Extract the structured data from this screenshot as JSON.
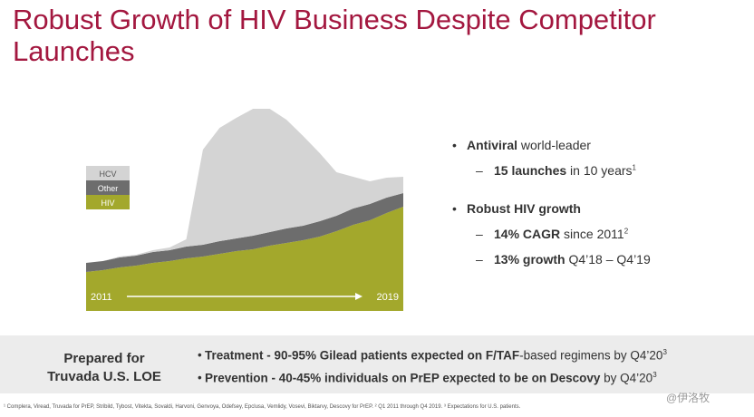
{
  "title": "Robust Growth of HIV Business Despite Competitor Launches",
  "chart_data": {
    "type": "stacked_area",
    "categories": [
      "2011",
      null,
      null,
      null,
      null,
      null,
      null,
      null,
      null,
      null,
      null,
      null,
      null,
      null,
      null,
      null,
      null,
      null,
      null,
      "2019"
    ],
    "series": [
      {
        "name": "HIV",
        "color": "#a3a82c",
        "values": [
          43,
          45,
          48,
          50,
          53,
          55,
          58,
          60,
          63,
          66,
          68,
          72,
          75,
          78,
          82,
          88,
          95,
          100,
          108,
          115
        ]
      },
      {
        "name": "Other",
        "color": "#6d6d6d",
        "values": [
          10,
          10,
          11,
          11,
          12,
          12,
          13,
          13,
          14,
          14,
          15,
          15,
          16,
          16,
          17,
          17,
          18,
          18,
          17,
          15
        ]
      },
      {
        "name": "HCV",
        "color": "#d4d4d4",
        "values": [
          0,
          0,
          1,
          1,
          2,
          3,
          8,
          105,
          125,
          133,
          140,
          136,
          120,
          99,
          75,
          48,
          35,
          25,
          22,
          18
        ]
      }
    ],
    "ylim": [
      0,
      230
    ]
  },
  "bullets": [
    {
      "bold": "Antiviral",
      "text": " world-leader",
      "sub": [
        {
          "bold": "15 launches",
          "text": " in 10 years",
          "sup": "1"
        }
      ]
    },
    {
      "bold": "Robust HIV growth",
      "sub": [
        {
          "bold": "14% CAGR",
          "text": " since 2011",
          "sup": "2"
        },
        {
          "bold": "13% growth",
          "text": " Q4’18 – Q4’19"
        }
      ]
    }
  ],
  "box": {
    "label": [
      "Prepared for",
      "Truvada U.S. LOE"
    ],
    "items": [
      {
        "bold": "Treatment - 90-95% Gilead patients expected on F/TAF",
        "text": "-based regimens by Q4’20",
        "sup": "3"
      },
      {
        "bold": "Prevention - 40-45% individuals on PrEP expected to be on Descovy",
        "text": " by Q4’20",
        "sup": "3"
      }
    ]
  },
  "footnote": "¹ Complera, Viread, Truvada for PrEP, Stribild, Tybost, Vitekta, Sovaldi, Harvoni, Genvoya, Odefsey, Epclusa, Vemlidy, Vosevi, Biktarvy, Descovy for PrEP.  ² Q1 2011 through Q4 2019.  ³ Expectations for U.S. patients.",
  "watermark": "@伊洛牧"
}
